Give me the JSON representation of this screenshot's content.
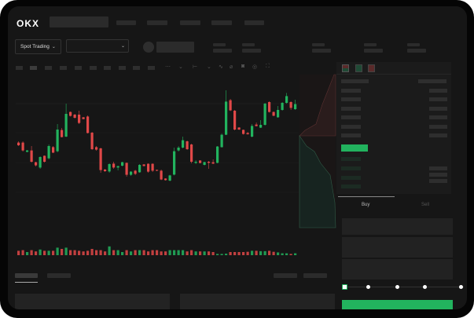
{
  "header": {
    "logo": "OKX"
  },
  "market": {
    "mode_select": "Spot Trading",
    "chevron_icon": "chevron-down-icon"
  },
  "trade": {
    "tabs": [
      "Buy",
      "Sell"
    ],
    "active_tab": "Buy",
    "leverage_slider_fraction": 0
  },
  "colors": {
    "up": "#22b35e",
    "down": "#e04848",
    "background": "#161616"
  },
  "chart_data": {
    "type": "candlestick",
    "grid": true,
    "candles": [
      [
        59.2,
        57.5,
        60,
        57
      ],
      [
        59.2,
        54.2,
        60,
        53.5
      ],
      [
        53.3,
        54.2,
        54.5,
        53
      ],
      [
        54.2,
        47,
        57,
        46.5
      ],
      [
        46.7,
        44.7,
        47,
        44
      ],
      [
        43.3,
        50,
        50.5,
        42.5
      ],
      [
        50.8,
        47,
        51,
        46.5
      ],
      [
        49.2,
        57,
        58,
        48.5
      ],
      [
        56.3,
        52.8,
        57,
        52.5
      ],
      [
        53.7,
        67.5,
        71,
        53
      ],
      [
        67.2,
        62.7,
        68.5,
        62.5
      ],
      [
        63,
        77.5,
        84,
        62.7
      ],
      [
        78.7,
        76.2,
        79,
        75.8
      ],
      [
        77,
        75,
        77.5,
        74.5
      ],
      [
        77,
        71.7,
        79.5,
        71
      ],
      [
        75.3,
        74.2,
        75.5,
        74
      ],
      [
        75.8,
        65.3,
        76.5,
        65
      ],
      [
        65.5,
        55,
        66,
        54.5
      ],
      [
        56.3,
        54.7,
        57,
        54
      ],
      [
        55.5,
        41.7,
        56,
        40
      ],
      [
        42,
        41,
        42.5,
        40.5
      ],
      [
        40.8,
        45.5,
        46,
        40
      ],
      [
        45.8,
        43.3,
        47,
        42.5
      ],
      [
        43.3,
        44.2,
        44.5,
        41.5
      ],
      [
        44.5,
        46.7,
        47,
        44
      ],
      [
        46.3,
        38.7,
        46.5,
        37.5
      ],
      [
        38.7,
        40.7,
        41,
        38
      ],
      [
        41.3,
        39.3,
        41.8,
        38.5
      ],
      [
        40.3,
        45,
        45.5,
        40
      ],
      [
        45.3,
        44.3,
        45.5,
        44
      ],
      [
        45.7,
        40.7,
        46,
        40
      ],
      [
        45.7,
        41.3,
        46,
        40.5
      ],
      [
        41.8,
        41.3,
        42,
        41
      ],
      [
        41.3,
        35.7,
        42,
        35.3
      ],
      [
        36.3,
        35.3,
        36.5,
        35
      ],
      [
        35,
        38.3,
        38.7,
        34.5
      ],
      [
        38.8,
        53.7,
        56,
        38.3
      ],
      [
        54.2,
        56,
        57,
        53.5
      ],
      [
        56,
        60.7,
        63,
        55.5
      ],
      [
        60,
        55,
        60.5,
        54.5
      ],
      [
        58,
        47,
        58.5,
        46
      ],
      [
        46.3,
        47,
        48,
        45.5
      ],
      [
        47.8,
        46.2,
        48,
        46
      ],
      [
        45,
        46.8,
        47,
        44.7
      ],
      [
        47,
        46.3,
        47.5,
        42.5
      ],
      [
        46.7,
        45.8,
        48.5,
        45.5
      ],
      [
        46.3,
        56.7,
        57,
        46
      ],
      [
        56.3,
        64.2,
        65,
        56
      ],
      [
        64.2,
        85.3,
        92.5,
        64
      ],
      [
        86.2,
        79.7,
        87,
        79.3
      ],
      [
        79.5,
        67.5,
        80,
        67
      ],
      [
        68.8,
        67.5,
        69,
        67.2
      ],
      [
        67.3,
        64.7,
        67.5,
        64.3
      ],
      [
        65.3,
        64.5,
        66,
        64.3
      ],
      [
        63,
        69.8,
        71,
        62.5
      ],
      [
        70.7,
        69.7,
        72,
        69.5
      ],
      [
        68.7,
        70.5,
        73.5,
        68.5
      ],
      [
        70.5,
        84,
        84.5,
        70
      ],
      [
        85,
        78.7,
        85.5,
        78.3
      ],
      [
        78.7,
        76.3,
        79,
        76
      ],
      [
        75.3,
        80,
        82.5,
        75
      ],
      [
        80,
        84.5,
        85,
        79.5
      ],
      [
        84.5,
        88.8,
        90.8,
        84
      ],
      [
        85,
        81.3,
        85.5,
        80
      ],
      [
        80.5,
        83.7,
        86.5,
        80
      ]
    ],
    "candle_fields": [
      "open",
      "close",
      "high",
      "low"
    ],
    "volume": [
      3.5,
      4,
      2.5,
      4,
      3,
      4.5,
      3.5,
      3.5,
      3.5,
      6,
      5,
      6,
      4,
      4,
      3.5,
      3,
      3.5,
      5,
      4,
      4,
      3,
      7,
      4,
      4,
      2.5,
      4,
      3,
      4,
      4,
      4,
      3,
      4,
      4,
      3,
      3,
      4,
      4,
      4,
      4,
      3,
      4,
      3,
      3,
      3,
      3,
      2.5,
      1,
      1,
      1.2,
      2.5,
      2.5,
      2.5,
      2.5,
      2.7,
      3.5,
      3.5,
      3.2,
      3.2,
      3.5,
      2.7,
      2.2,
      1.5,
      1.5,
      1,
      1.5
    ],
    "ylim": [
      0,
      100
    ]
  }
}
